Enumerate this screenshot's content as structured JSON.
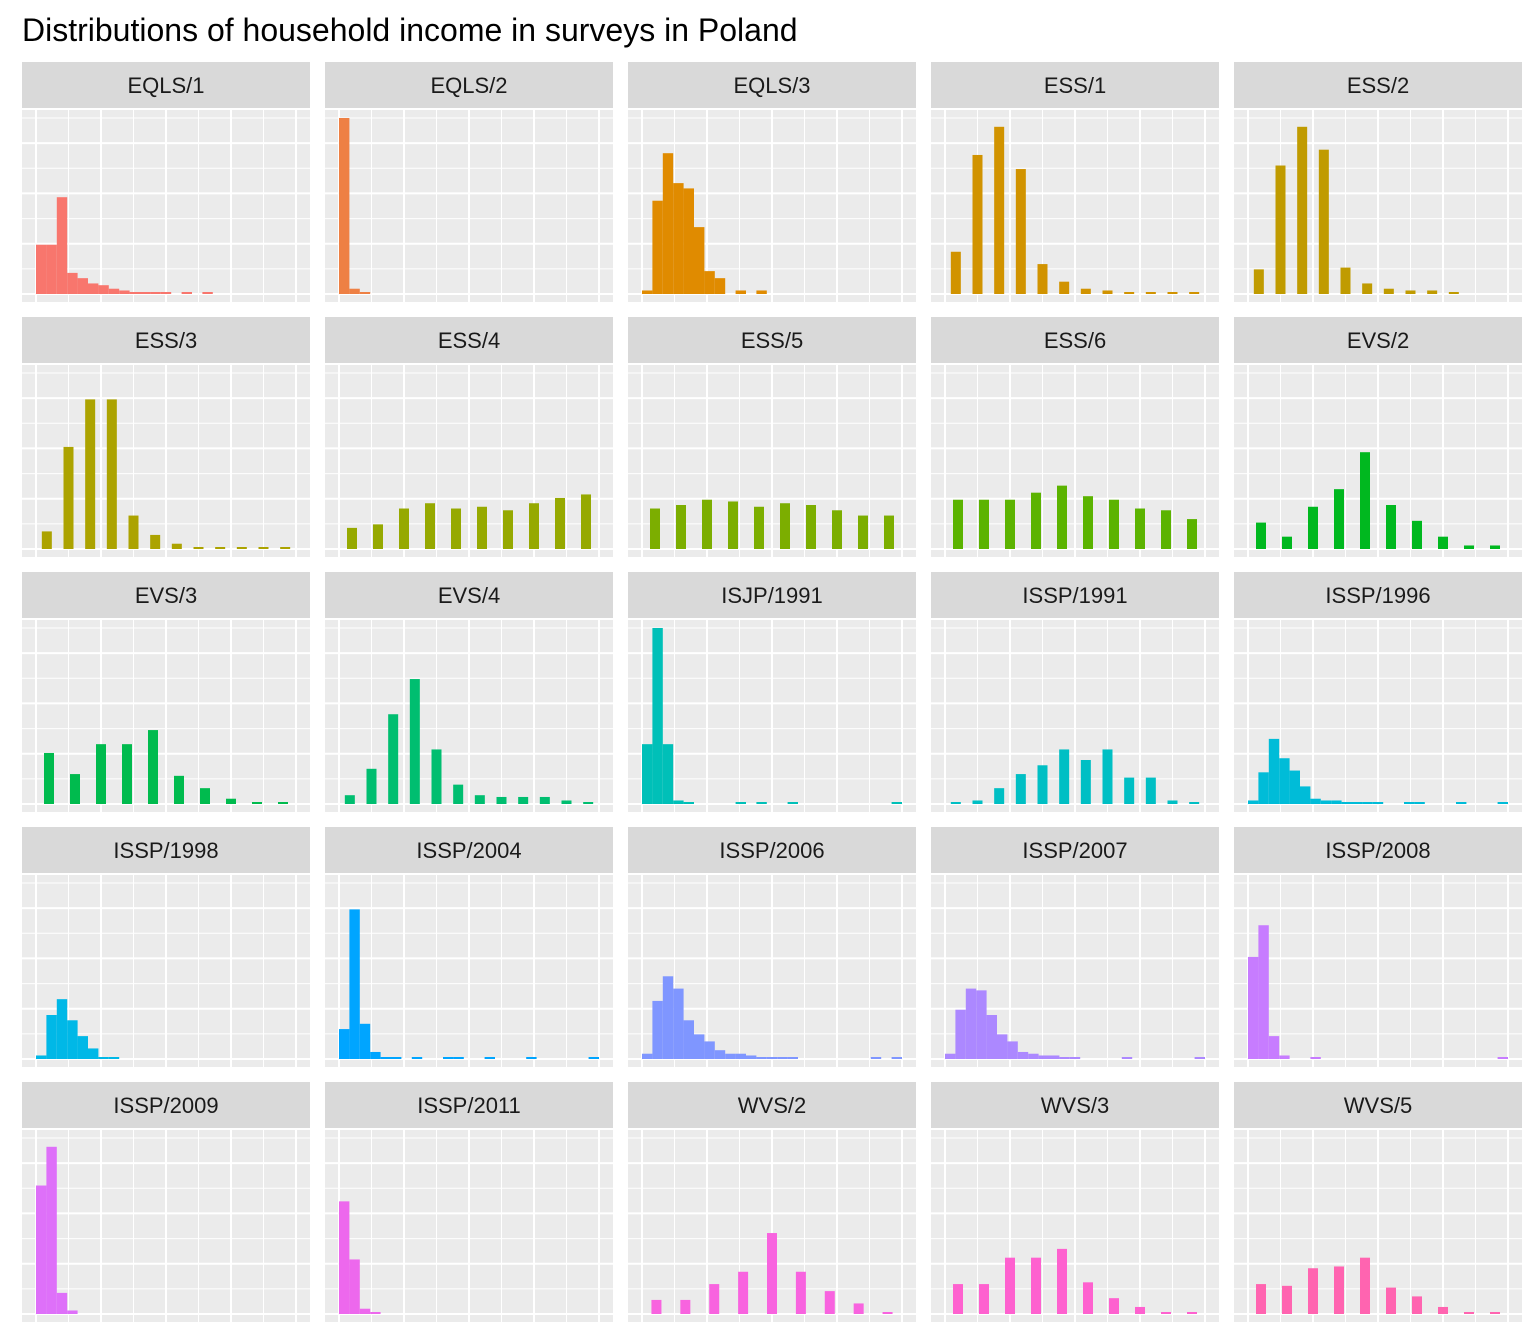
{
  "chart_data": {
    "type": "bar",
    "title": "Distributions of household income in surveys in Poland",
    "xlabel": "",
    "ylabel": "",
    "grid": true,
    "legend": "none",
    "panels": [
      {
        "name": "EQLS/1",
        "color": "#F8766D",
        "values": [
          28,
          28,
          55,
          12,
          9,
          6,
          5,
          3,
          2,
          1,
          1,
          1,
          1,
          0,
          1,
          0,
          1,
          0,
          0,
          0,
          0,
          0,
          0,
          0,
          0
        ]
      },
      {
        "name": "EQLS/2",
        "color": "#EE8044",
        "values": [
          100,
          3,
          1,
          0,
          0,
          0,
          0,
          0,
          0,
          0,
          0,
          0,
          0,
          0,
          0,
          0,
          0,
          0,
          0,
          0,
          0,
          0,
          0,
          0,
          0
        ]
      },
      {
        "name": "EQLS/3",
        "color": "#E08B00",
        "values": [
          2,
          53,
          80,
          63,
          60,
          38,
          13,
          9,
          0,
          2,
          0,
          2,
          0,
          0,
          0,
          0,
          0,
          0,
          0,
          0,
          0,
          0,
          0,
          0,
          0
        ]
      },
      {
        "name": "ESS/1",
        "color": "#D19300",
        "bar": "thin",
        "values": [
          24,
          79,
          95,
          71,
          17,
          7,
          3,
          2,
          1,
          1,
          1,
          1
        ]
      },
      {
        "name": "ESS/2",
        "color": "#C09B00",
        "bar": "thin",
        "values": [
          14,
          73,
          95,
          82,
          15,
          6,
          3,
          2,
          2,
          1,
          0,
          0
        ]
      },
      {
        "name": "ESS/3",
        "color": "#ACA300",
        "bar": "thin",
        "values": [
          10,
          58,
          85,
          85,
          19,
          8,
          3,
          1,
          1,
          1,
          1,
          1
        ]
      },
      {
        "name": "ESS/4",
        "color": "#96A900",
        "bar": "thin",
        "values": [
          12,
          14,
          23,
          26,
          23,
          24,
          22,
          26,
          29,
          31
        ]
      },
      {
        "name": "ESS/5",
        "color": "#7CAE00",
        "bar": "thin",
        "values": [
          23,
          25,
          28,
          27,
          24,
          26,
          25,
          22,
          19,
          19
        ]
      },
      {
        "name": "ESS/6",
        "color": "#5BB300",
        "bar": "thin",
        "values": [
          28,
          28,
          28,
          32,
          36,
          30,
          28,
          23,
          22,
          17
        ]
      },
      {
        "name": "EVS/2",
        "color": "#00B81F",
        "bar": "thin",
        "values": [
          15,
          7,
          24,
          34,
          55,
          25,
          16,
          7,
          2,
          2
        ]
      },
      {
        "name": "EVS/3",
        "color": "#00BB4E",
        "bar": "thin",
        "values": [
          29,
          17,
          34,
          34,
          42,
          16,
          9,
          3,
          1,
          1
        ]
      },
      {
        "name": "EVS/4",
        "color": "#00BE70",
        "bar": "thin",
        "values": [
          5,
          20,
          51,
          71,
          31,
          11,
          5,
          4,
          4,
          4,
          2,
          1
        ]
      },
      {
        "name": "ISJP/1991",
        "color": "#00C0B8",
        "values": [
          34,
          100,
          34,
          2,
          1,
          0,
          0,
          0,
          0,
          1,
          0,
          1,
          0,
          0,
          1,
          0,
          0,
          0,
          0,
          0,
          0,
          0,
          0,
          0,
          1
        ]
      },
      {
        "name": "ISSP/1991",
        "color": "#00BFC4",
        "bar": "thin",
        "values": [
          1,
          2,
          9,
          17,
          22,
          31,
          25,
          31,
          15,
          15,
          2,
          1
        ]
      },
      {
        "name": "ISSP/1996",
        "color": "#00BCD8",
        "values": [
          2,
          18,
          37,
          26,
          19,
          10,
          3,
          2,
          2,
          1,
          1,
          1,
          1,
          0,
          0,
          1,
          1,
          0,
          0,
          0,
          1,
          0,
          0,
          0,
          1
        ]
      },
      {
        "name": "ISSP/1998",
        "color": "#00B8E7",
        "values": [
          2,
          25,
          34,
          22,
          13,
          6,
          1,
          1,
          0,
          0,
          0,
          0,
          0,
          0,
          0,
          0,
          0,
          0,
          0,
          0,
          0,
          0,
          0,
          0,
          0
        ]
      },
      {
        "name": "ISSP/2004",
        "color": "#00A5FF",
        "values": [
          17,
          85,
          20,
          4,
          1,
          1,
          0,
          1,
          0,
          0,
          1,
          1,
          0,
          0,
          1,
          0,
          0,
          0,
          1,
          0,
          0,
          0,
          0,
          0,
          1
        ]
      },
      {
        "name": "ISSP/2006",
        "color": "#7F96FF",
        "values": [
          3,
          33,
          47,
          40,
          22,
          14,
          10,
          5,
          3,
          3,
          2,
          1,
          1,
          1,
          1,
          0,
          0,
          0,
          0,
          0,
          0,
          0,
          1,
          0,
          1
        ]
      },
      {
        "name": "ISSP/2007",
        "color": "#AC88FF",
        "values": [
          3,
          28,
          40,
          39,
          25,
          14,
          10,
          4,
          3,
          2,
          2,
          1,
          1,
          0,
          0,
          0,
          0,
          1,
          0,
          0,
          0,
          0,
          0,
          0,
          1
        ]
      },
      {
        "name": "ISSP/2008",
        "color": "#C77CFF",
        "values": [
          58,
          76,
          13,
          2,
          0,
          0,
          1,
          0,
          0,
          0,
          0,
          0,
          0,
          0,
          0,
          0,
          0,
          0,
          0,
          0,
          0,
          0,
          0,
          0,
          1
        ]
      },
      {
        "name": "ISSP/2009",
        "color": "#DE70F9",
        "values": [
          73,
          95,
          12,
          2,
          0,
          0,
          0,
          0,
          0,
          0,
          0,
          0,
          0,
          0,
          0,
          0,
          0,
          0,
          0,
          0,
          0,
          0,
          0,
          0,
          0
        ]
      },
      {
        "name": "ISSP/2011",
        "color": "#ED68ED",
        "values": [
          64,
          31,
          3,
          1,
          0,
          0,
          0,
          0,
          0,
          0,
          0,
          0,
          0,
          0,
          0,
          0,
          0,
          0,
          0,
          0,
          0,
          0,
          0,
          0,
          0
        ]
      },
      {
        "name": "WVS/2",
        "color": "#F863DF",
        "bar": "thin",
        "values": [
          8,
          8,
          17,
          24,
          46,
          24,
          13,
          6,
          1
        ]
      },
      {
        "name": "WVS/3",
        "color": "#FE61CF",
        "bar": "thin",
        "values": [
          17,
          17,
          32,
          32,
          37,
          18,
          9,
          4,
          1,
          1
        ]
      },
      {
        "name": "WVS/5",
        "color": "#FF64B0",
        "bar": "thin",
        "values": [
          17,
          16,
          26,
          27,
          32,
          15,
          10,
          4,
          1,
          1
        ]
      }
    ]
  }
}
